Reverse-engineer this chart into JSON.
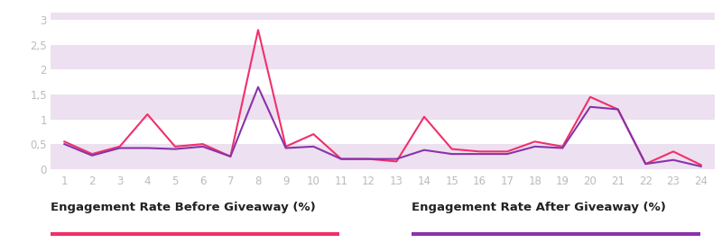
{
  "x": [
    1,
    2,
    3,
    4,
    5,
    6,
    7,
    8,
    9,
    10,
    11,
    12,
    13,
    14,
    15,
    16,
    17,
    18,
    19,
    20,
    21,
    22,
    23,
    24
  ],
  "line1": [
    0.55,
    0.3,
    0.45,
    1.1,
    0.45,
    0.5,
    0.25,
    2.8,
    0.45,
    0.7,
    0.2,
    0.2,
    0.15,
    1.05,
    0.4,
    0.35,
    0.35,
    0.55,
    0.45,
    1.45,
    1.2,
    0.1,
    0.35,
    0.08
  ],
  "line2": [
    0.5,
    0.27,
    0.42,
    0.42,
    0.4,
    0.45,
    0.25,
    1.65,
    0.42,
    0.45,
    0.2,
    0.2,
    0.2,
    0.38,
    0.3,
    0.3,
    0.3,
    0.45,
    0.42,
    1.25,
    1.2,
    0.1,
    0.18,
    0.05
  ],
  "line1_color": "#f0306a",
  "line2_color": "#8833aa",
  "bg_color": "#ffffff",
  "stripe_color": "#ede0f0",
  "yticks": [
    0,
    0.5,
    1,
    1.5,
    2,
    2.5,
    3
  ],
  "ytick_labels": [
    "0",
    "0,5",
    "1",
    "1,5",
    "2",
    "2,5",
    "3"
  ],
  "ylim": [
    -0.05,
    3.15
  ],
  "xlim": [
    0.5,
    24.5
  ],
  "legend1_label": "Engagement Rate Before Giveaway (%)",
  "legend2_label": "Engagement Rate After Giveaway (%)",
  "tick_color": "#bbbbbb",
  "label_color": "#222222",
  "legend_fontsize": 9.5
}
